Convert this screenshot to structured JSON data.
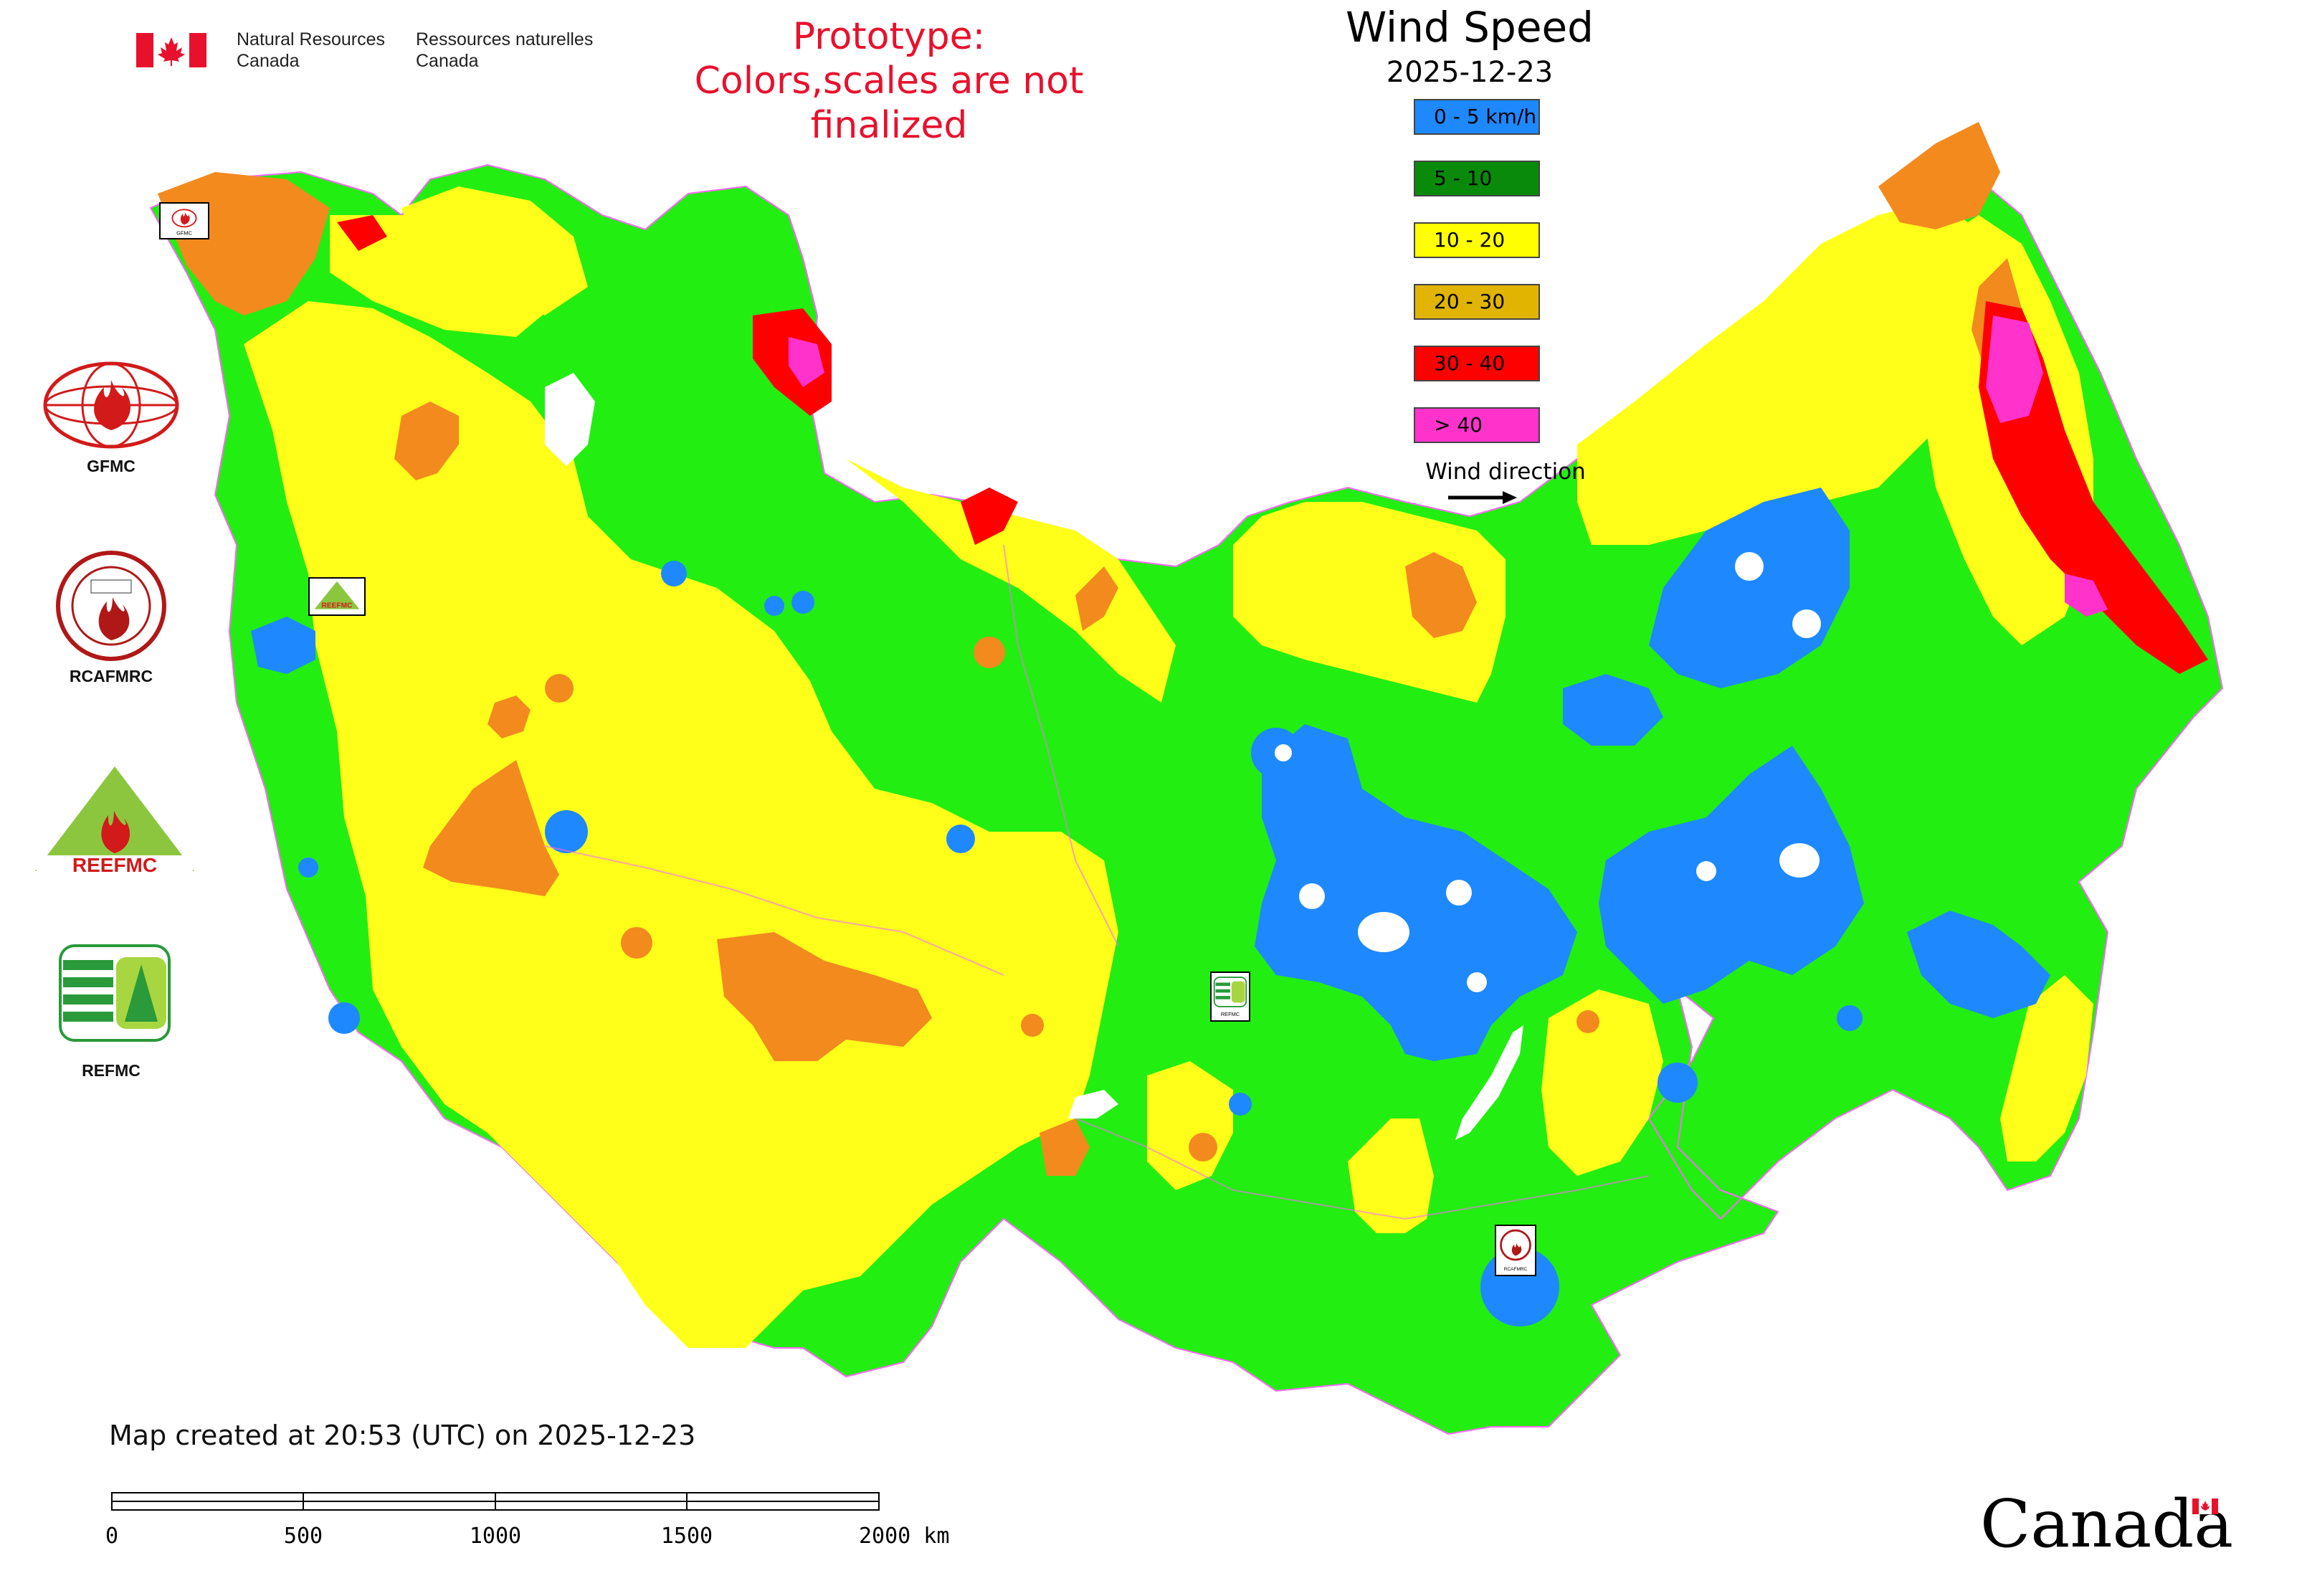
{
  "header": {
    "nrcan_en_line1": "Natural Resources",
    "nrcan_en_line2": "Canada",
    "nrcan_fr_line1": "Ressources naturelles",
    "nrcan_fr_line2": "Canada",
    "prototype_line1": "Prototype:",
    "prototype_line2": "Colors,scales are not finalized",
    "prototype_color": "#e8112d"
  },
  "legend": {
    "title": "Wind Speed",
    "date": "2025-12-23",
    "items": [
      {
        "label": "0 - 5 km/h",
        "color": "#1e88ff"
      },
      {
        "label": "5 - 10",
        "color": "#0a8a0a"
      },
      {
        "label": "10 - 20",
        "color": "#ffff00"
      },
      {
        "label": "20 - 30",
        "color": "#e0b400"
      },
      {
        "label": "30 - 40",
        "color": "#ff0000"
      },
      {
        "label": "> 40",
        "color": "#ff33cc"
      }
    ],
    "wind_direction_label": "Wind direction"
  },
  "map": {
    "region": "Russia / North-Central Asia",
    "colors": {
      "land_green": "#22ee11",
      "yellow": "#ffff1a",
      "orange": "#f28a1e",
      "blue": "#1e88ff",
      "red": "#ff0000",
      "magenta": "#ff33cc",
      "boundary": "#ff66ff"
    }
  },
  "partners": [
    {
      "name": "GFMC",
      "icon": "gfmc-logo"
    },
    {
      "name": "RCAFMRC",
      "icon": "rcafmrc-logo"
    },
    {
      "name": "REEFMC",
      "icon": "reefmc-logo"
    },
    {
      "name": "REFMC",
      "icon": "refmc-logo"
    }
  ],
  "stamps": {
    "gfmc": "GFMC",
    "reefmc": "REEFMC",
    "refmc": "REFMC",
    "rcafmrc": "RCAFMRC"
  },
  "footer": {
    "created": "Map created at 20:53 (UTC) on 2025-12-23",
    "scale_ticks": [
      "0",
      "500",
      "1000",
      "1500",
      "2000 km"
    ],
    "wordmark": "Canada"
  }
}
